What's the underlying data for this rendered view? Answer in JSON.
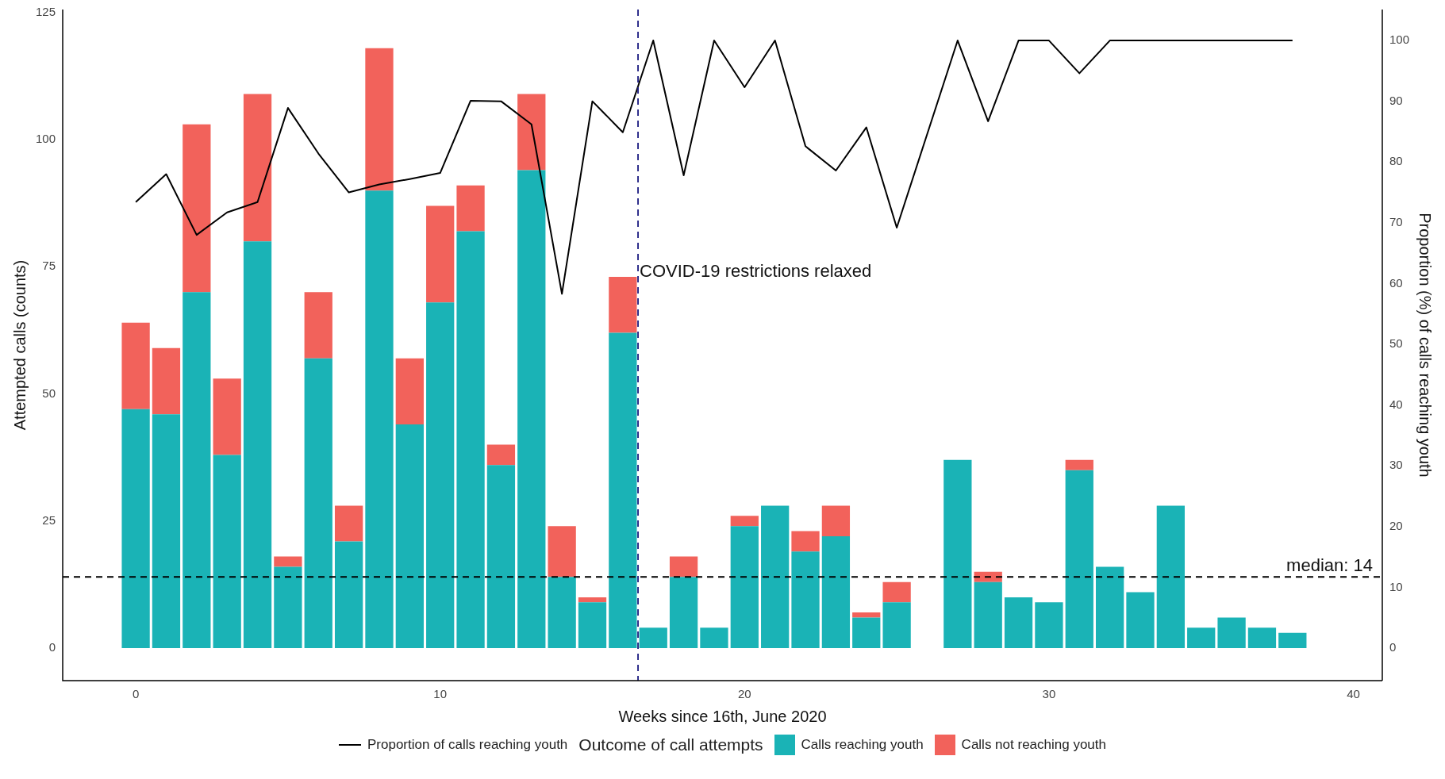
{
  "chart_data": {
    "type": "bar",
    "stacked": true,
    "xlabel": "Weeks since 16th, June 2020",
    "ylabel": "Attempted calls (counts)",
    "y2label": "Proportion (%) of calls reaching youth",
    "legend_title": "Outcome of call attempts",
    "legend": "bottom",
    "grid": false,
    "x": [
      0,
      1,
      2,
      3,
      4,
      5,
      6,
      7,
      8,
      9,
      10,
      11,
      12,
      13,
      14,
      15,
      16,
      17,
      18,
      19,
      20,
      21,
      22,
      23,
      24,
      25,
      26,
      27,
      28,
      29,
      30,
      31,
      32,
      33,
      34,
      35,
      36,
      37,
      38
    ],
    "series": [
      {
        "name": "Proportion of calls reaching youth",
        "type": "line",
        "axis": "y2",
        "color": "#000000",
        "x": [
          0,
          1,
          2,
          3,
          4,
          5,
          6,
          7,
          8,
          9,
          10,
          11,
          12,
          13,
          14,
          15,
          16,
          17,
          18,
          19,
          20,
          21,
          22,
          23,
          24,
          25,
          27,
          28,
          29,
          30,
          31,
          32,
          33,
          34,
          35,
          36,
          37,
          38
        ],
        "values": [
          73.4,
          78.0,
          68.0,
          71.7,
          73.4,
          88.9,
          81.4,
          75.0,
          76.3,
          77.2,
          78.2,
          90.1,
          90.0,
          86.2,
          58.3,
          90.0,
          84.9,
          100,
          77.8,
          100,
          92.3,
          100,
          82.6,
          78.6,
          85.7,
          69.2,
          100,
          86.7,
          100,
          100,
          94.6,
          100,
          100,
          100,
          100,
          100,
          100,
          100
        ]
      },
      {
        "name": "Calls reaching youth",
        "color": "#1ab3b6",
        "values": [
          47,
          46,
          70,
          38,
          80,
          16,
          57,
          21,
          90,
          44,
          68,
          82,
          36,
          94,
          14,
          9,
          62,
          4,
          14,
          4,
          24,
          28,
          19,
          22,
          6,
          9,
          null,
          37,
          13,
          10,
          9,
          35,
          16,
          11,
          28,
          4,
          6,
          4,
          3
        ]
      },
      {
        "name": "Calls not reaching youth",
        "color": "#f2625b",
        "values": [
          17,
          13,
          33,
          15,
          29,
          2,
          13,
          7,
          28,
          13,
          19,
          9,
          4,
          15,
          10,
          1,
          11,
          0,
          4,
          0,
          2,
          0,
          4,
          6,
          1,
          4,
          null,
          0,
          2,
          0,
          0,
          2,
          0,
          0,
          0,
          0,
          0,
          0,
          0
        ]
      }
    ],
    "xlim": [
      -2.4,
      40.95
    ],
    "xticks": [
      0,
      10,
      20,
      30,
      40
    ],
    "ylim": [
      -6.4,
      125.6
    ],
    "yticks": [
      0,
      25,
      50,
      75,
      100,
      125
    ],
    "y2lim": [
      -5.36,
      105.1
    ],
    "y2ticks": [
      0,
      10,
      20,
      30,
      40,
      50,
      60,
      70,
      80,
      90,
      100
    ],
    "ref_lines": [
      {
        "axis": "x",
        "value": 16.5,
        "label": "COVID-19 restrictions relaxed",
        "color": "#1a1a80",
        "line_style": "dashed"
      },
      {
        "axis": "y",
        "value": 14,
        "label": "median: 14",
        "color": "#000000",
        "line_style": "dashed"
      }
    ]
  }
}
